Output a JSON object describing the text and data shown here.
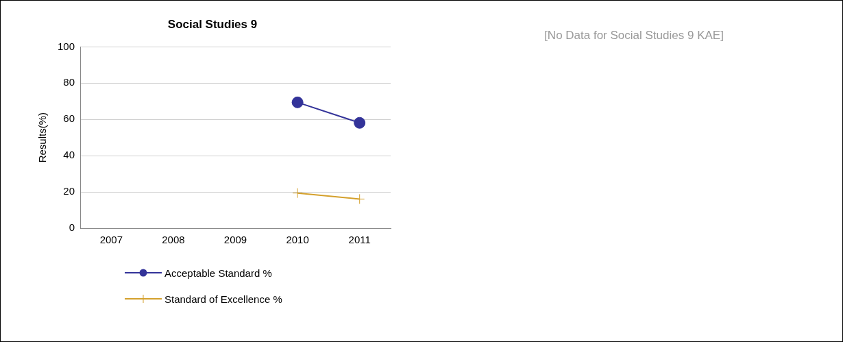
{
  "chart_data": {
    "type": "line",
    "title": "Social Studies 9",
    "ylabel": "Results(%)",
    "categories": [
      "2007",
      "2008",
      "2009",
      "2010",
      "2011"
    ],
    "series": [
      {
        "name": "Acceptable Standard %",
        "color": "#333399",
        "marker": "circle",
        "values": [
          null,
          null,
          null,
          69.4,
          58.1
        ]
      },
      {
        "name": "Standard of Excellence %",
        "color": "#d4a02c",
        "marker": "cross",
        "values": [
          null,
          null,
          null,
          19.4,
          16.1
        ]
      }
    ],
    "ylim": [
      0,
      100
    ],
    "yticks": [
      0,
      20,
      40,
      60,
      80,
      100
    ],
    "grid": "y",
    "legend": "bottom",
    "line_style": "solid",
    "annotations": [
      "[No Data for Social Studies 9 KAE]"
    ]
  }
}
